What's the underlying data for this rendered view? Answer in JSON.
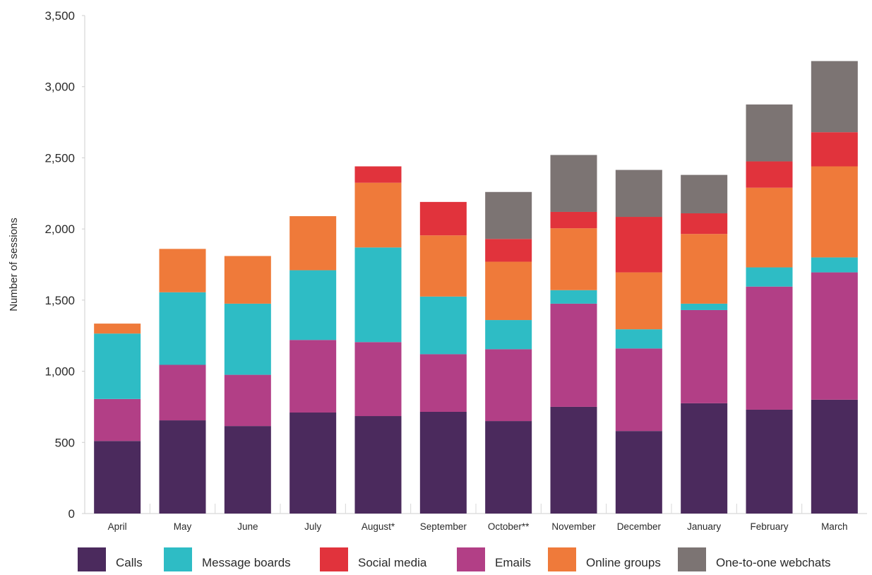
{
  "chart_data": {
    "type": "bar",
    "stacked": true,
    "ylabel": "Number of sessions",
    "ylim": [
      0,
      3500
    ],
    "yticks": [
      0,
      500,
      1000,
      1500,
      2000,
      2500,
      3000,
      3500
    ],
    "ytick_labels": [
      "0",
      "500",
      "1,000",
      "1,500",
      "2,000",
      "2,500",
      "3,000",
      "3,500"
    ],
    "categories": [
      "April",
      "May",
      "June",
      "July",
      "August*",
      "September",
      "October**",
      "November",
      "December",
      "January",
      "February",
      "March"
    ],
    "series": [
      {
        "name": "Calls",
        "color": "#4b2a5d",
        "values": [
          510,
          655,
          615,
          710,
          685,
          715,
          650,
          750,
          580,
          775,
          730,
          800
        ]
      },
      {
        "name": "Emails",
        "color": "#b23f86",
        "values": [
          295,
          390,
          360,
          510,
          520,
          405,
          505,
          725,
          580,
          655,
          865,
          895
        ]
      },
      {
        "name": "Message boards",
        "color": "#2ebcc5",
        "values": [
          460,
          510,
          500,
          490,
          665,
          405,
          205,
          95,
          135,
          45,
          135,
          105
        ]
      },
      {
        "name": "Online groups",
        "color": "#ef7a3a",
        "values": [
          70,
          305,
          335,
          380,
          455,
          430,
          410,
          435,
          400,
          490,
          560,
          640
        ]
      },
      {
        "name": "Social media",
        "color": "#e1333c",
        "values": [
          0,
          0,
          0,
          0,
          115,
          235,
          160,
          115,
          390,
          145,
          185,
          240
        ]
      },
      {
        "name": "One-to-one webchats",
        "color": "#7c7473",
        "values": [
          0,
          0,
          0,
          0,
          0,
          0,
          330,
          400,
          330,
          270,
          400,
          500
        ]
      }
    ],
    "legend": {
      "placement": "bottom",
      "order": [
        "Calls",
        "Message boards",
        "Social media",
        "Emails",
        "Online groups",
        "One-to-one webchats"
      ]
    },
    "grid": false
  }
}
